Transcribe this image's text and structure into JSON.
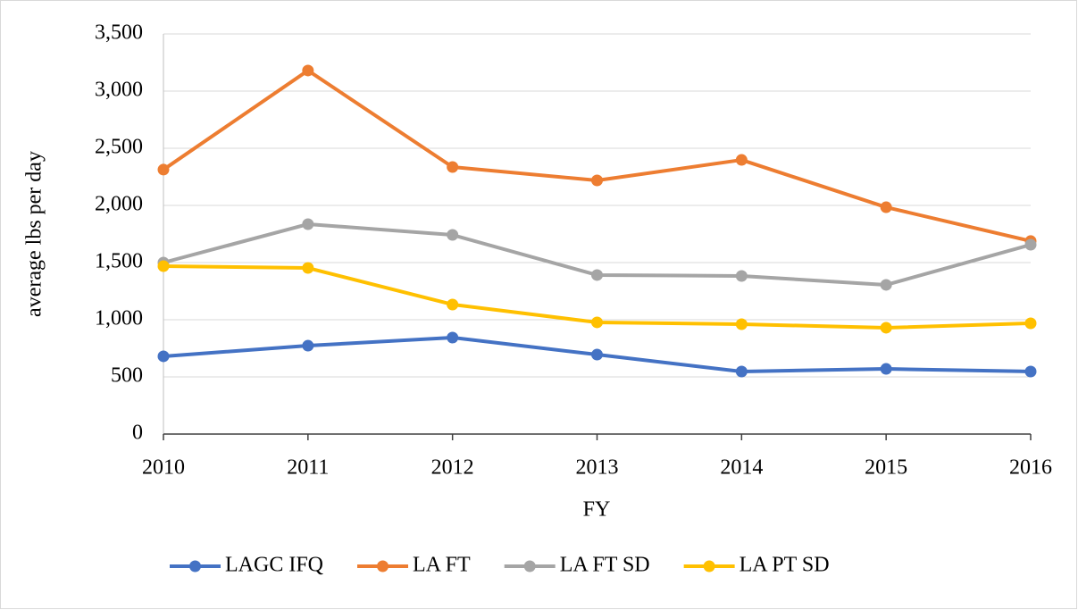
{
  "chart_data": {
    "type": "line",
    "x_label": "FY",
    "y_label": "average lbs per day",
    "categories": [
      "2010",
      "2011",
      "2012",
      "2013",
      "2014",
      "2015",
      "2016"
    ],
    "series": [
      {
        "name": "LAGC IFQ",
        "color": "#4472c4",
        "values": [
          680,
          773,
          844,
          695,
          547,
          570,
          547
        ]
      },
      {
        "name": "LA FT",
        "color": "#ed7d31",
        "values": [
          2313,
          3180,
          2336,
          2219,
          2398,
          1984,
          1688
        ]
      },
      {
        "name": "LA FT SD",
        "color": "#a5a5a5",
        "values": [
          1500,
          1836,
          1742,
          1391,
          1383,
          1305,
          1656
        ]
      },
      {
        "name": "LA PT SD",
        "color": "#ffc000",
        "values": [
          1469,
          1453,
          1133,
          977,
          961,
          930,
          969
        ]
      }
    ],
    "ylim": [
      0,
      3500
    ],
    "yticks": [
      0,
      500,
      {
        "value": 1000,
        "label": "1,000"
      },
      {
        "value": 1500,
        "label": "1,500"
      },
      {
        "value": 2000,
        "label": "2,000"
      },
      {
        "value": 2500,
        "label": "2,500"
      },
      {
        "value": 3000,
        "label": "3,000"
      },
      {
        "value": 3500,
        "label": "3,500"
      }
    ],
    "grid": true,
    "legend": "bottom"
  }
}
